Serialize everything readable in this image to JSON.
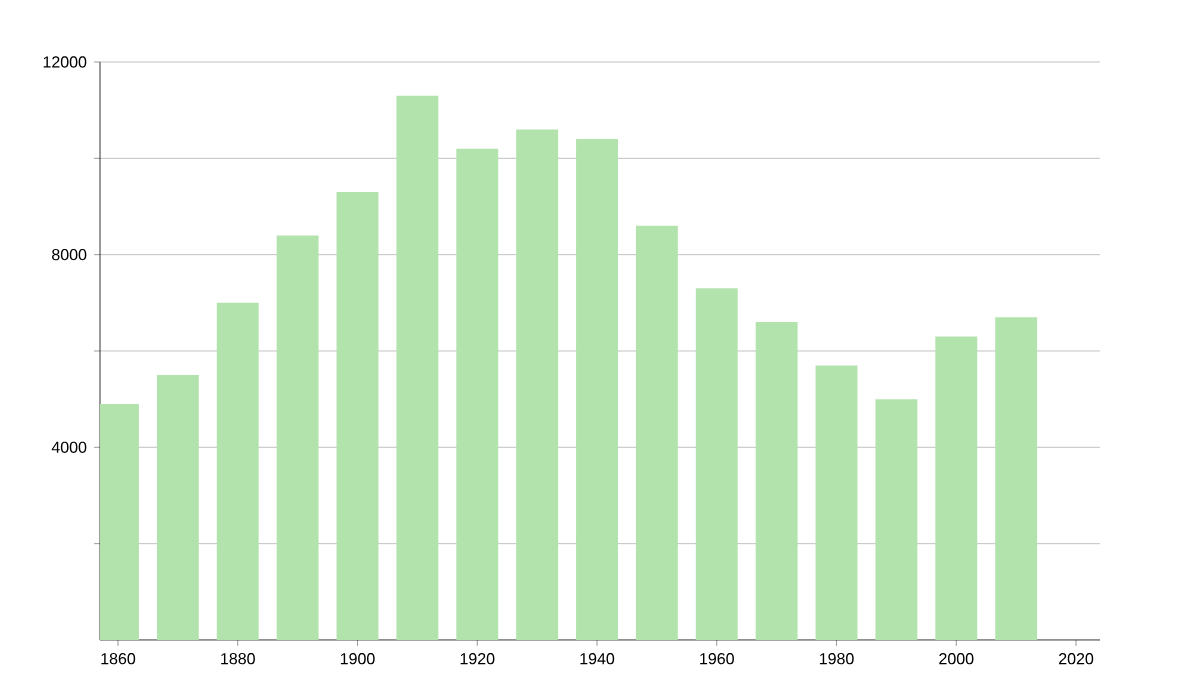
{
  "chart_data": {
    "type": "bar",
    "color": "#b3e3ad",
    "x": [
      1860,
      1870,
      1880,
      1890,
      1900,
      1910,
      1920,
      1930,
      1940,
      1950,
      1960,
      1970,
      1980,
      1990,
      2000,
      2010
    ],
    "values": [
      4900,
      5500,
      7000,
      8400,
      9300,
      11300,
      10200,
      10600,
      10400,
      8600,
      7300,
      6600,
      5700,
      5000,
      6300,
      6700
    ],
    "xlim": [
      1857,
      2024
    ],
    "xticks": [
      1860,
      1880,
      1900,
      1920,
      1940,
      1960,
      1980,
      2000,
      2020
    ],
    "ylim": [
      0,
      12000
    ],
    "yticks": [
      {
        "value": 2000,
        "label": null
      },
      4000,
      {
        "value": 6000,
        "label": null
      },
      8000,
      {
        "value": 10000,
        "label": null
      },
      12000
    ],
    "grid": "y"
  }
}
